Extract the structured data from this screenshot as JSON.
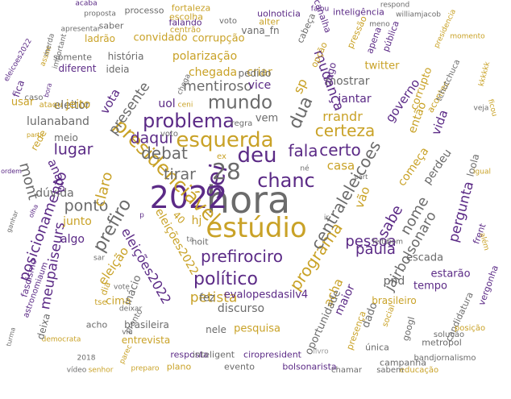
{
  "palette": {
    "purple": "#5b2a86",
    "gold": "#c9a227",
    "gray": "#6b6b6b",
    "lightgray": "#9a9a9a"
  },
  "words": [
    {
      "text": "hora",
      "color": "gray"
    },
    {
      "text": "2022",
      "color": "purple"
    },
    {
      "text": "estúdio",
      "color": "gold"
    },
    {
      "text": "sei",
      "color": "purple"
    },
    {
      "text": "28",
      "color": "gray"
    },
    {
      "text": "esquerda",
      "color": "gold"
    },
    {
      "text": "deu",
      "color": "purple"
    },
    {
      "text": "chanc",
      "color": "purple"
    },
    {
      "text": "problema",
      "color": "purple"
    },
    {
      "text": "mundo",
      "color": "gray"
    },
    {
      "text": "presidenciável",
      "color": "gold"
    },
    {
      "text": "prefirociro",
      "color": "purple"
    },
    {
      "text": "político",
      "color": "purple"
    },
    {
      "text": "fala",
      "color": "purple"
    },
    {
      "text": "certo",
      "color": "purple"
    },
    {
      "text": "certeza",
      "color": "gold"
    },
    {
      "text": "programa",
      "color": "gold"
    },
    {
      "text": "centraleleicoes",
      "color": "gray"
    },
    {
      "text": "dua",
      "color": "gray"
    },
    {
      "text": "debat",
      "color": "gray"
    },
    {
      "text": "tirar",
      "color": "gray"
    },
    {
      "text": "prefiro",
      "color": "gray"
    },
    {
      "text": "daqui",
      "color": "purple"
    },
    {
      "text": "lugar",
      "color": "purple"
    },
    {
      "text": "ponto",
      "color": "gray"
    },
    {
      "text": "pessoa",
      "color": "purple"
    },
    {
      "text": "paula",
      "color": "purple"
    },
    {
      "text": "nome",
      "color": "gray"
    },
    {
      "text": "sabe",
      "color": "purple"
    },
    {
      "text": "jairbolsonaro",
      "color": "gray"
    },
    {
      "text": "petista",
      "color": "gold"
    },
    {
      "text": "mentiroso",
      "color": "gray"
    },
    {
      "text": "rrandr",
      "color": "gold"
    },
    {
      "text": "mudança",
      "color": "purple"
    },
    {
      "text": "meupaiseurs",
      "color": "purple"
    },
    {
      "text": "eleições2022",
      "color": "purple"
    },
    {
      "text": "presente",
      "color": "gray"
    },
    {
      "text": "claro",
      "color": "gold"
    },
    {
      "text": "posicionamento",
      "color": "purple"
    },
    {
      "text": "mont",
      "color": "gray"
    },
    {
      "text": "sp",
      "color": "gold"
    },
    {
      "text": "casa",
      "color": "gold"
    },
    {
      "text": "vão",
      "color": "gold"
    },
    {
      "text": "perdeu",
      "color": "gray"
    },
    {
      "text": "pergunta",
      "color": "purple"
    },
    {
      "text": "começa",
      "color": "gold"
    },
    {
      "text": "vida",
      "color": "purple"
    },
    {
      "text": "governo",
      "color": "purple"
    },
    {
      "text": "então",
      "color": "gold"
    },
    {
      "text": "acha",
      "color": "gold"
    },
    {
      "text": "maior",
      "color": "purple"
    },
    {
      "text": "pnd",
      "color": "gray"
    },
    {
      "text": "dado",
      "color": "gray"
    },
    {
      "text": "oportunidade",
      "color": "gray"
    },
    {
      "text": "discurso",
      "color": "gray"
    },
    {
      "text": "pesquisa",
      "color": "gold"
    },
    {
      "text": "fez",
      "color": "gray"
    },
    {
      "text": "evalopesdasilv4",
      "color": "purple"
    },
    {
      "text": "cima",
      "color": "gold"
    },
    {
      "text": "brasileira",
      "color": "gray"
    },
    {
      "text": "entrevista",
      "color": "gold"
    },
    {
      "text": "resposta",
      "color": "purple"
    },
    {
      "text": "inteligent",
      "color": "gray"
    },
    {
      "text": "ciropresident",
      "color": "purple"
    },
    {
      "text": "bolsonarista",
      "color": "purple"
    },
    {
      "text": "evento",
      "color": "gray"
    },
    {
      "text": "plano",
      "color": "gold"
    },
    {
      "text": "nele",
      "color": "gray"
    },
    {
      "text": "eleição",
      "color": "gold"
    },
    {
      "text": "inácio",
      "color": "gray"
    },
    {
      "text": "eleições2022",
      "color": "gold"
    },
    {
      "text": "algo",
      "color": "purple"
    },
    {
      "text": "junto",
      "color": "gold"
    },
    {
      "text": "dúvida",
      "color": "gray"
    },
    {
      "text": "ana",
      "color": "purple"
    },
    {
      "text": "pq",
      "color": "purple"
    },
    {
      "text": "hj",
      "color": "gold"
    },
    {
      "text": "40",
      "color": "gold"
    },
    {
      "text": "lulanaband",
      "color": "gray"
    },
    {
      "text": "eleitor",
      "color": "gray"
    },
    {
      "text": "meio",
      "color": "gray"
    },
    {
      "text": "rede",
      "color": "gold"
    },
    {
      "text": "jeito",
      "color": "gold"
    },
    {
      "text": "vota",
      "color": "purple"
    },
    {
      "text": "uol",
      "color": "purple"
    },
    {
      "text": "vem",
      "color": "gray"
    },
    {
      "text": "vice",
      "color": "purple"
    },
    {
      "text": "chegada",
      "color": "gold"
    },
    {
      "text": "polarização",
      "color": "gold"
    },
    {
      "text": "criar",
      "color": "gold"
    },
    {
      "text": "mostrar",
      "color": "gray"
    },
    {
      "text": "jantar",
      "color": "purple"
    },
    {
      "text": "twitter",
      "color": "gold"
    },
    {
      "text": "pedido",
      "color": "gray"
    },
    {
      "text": "história",
      "color": "gray"
    },
    {
      "text": "diferent",
      "color": "purple"
    },
    {
      "text": "ideia",
      "color": "gray"
    },
    {
      "text": "somente",
      "color": "gray"
    },
    {
      "text": "convidado",
      "color": "gold"
    },
    {
      "text": "corrupção",
      "color": "gold"
    },
    {
      "text": "vana_fn",
      "color": "gray"
    },
    {
      "text": "uolnoticia",
      "color": "purple"
    },
    {
      "text": "processo",
      "color": "gray"
    },
    {
      "text": "saber",
      "color": "gray"
    },
    {
      "text": "ladrão",
      "color": "gold"
    },
    {
      "text": "falando",
      "color": "purple"
    },
    {
      "text": "centrão",
      "color": "gold"
    },
    {
      "text": "escolha",
      "color": "gold"
    },
    {
      "text": "fortaleza",
      "color": "gold"
    },
    {
      "text": "alter",
      "color": "gold"
    },
    {
      "text": "voto",
      "color": "gray"
    },
    {
      "text": "inteligência",
      "color": "purple"
    },
    {
      "text": "canalha",
      "color": "purple"
    },
    {
      "text": "cabeça",
      "color": "gray"
    },
    {
      "text": "pressão",
      "color": "gold"
    },
    {
      "text": "apena",
      "color": "purple"
    },
    {
      "text": "pública",
      "color": "purple"
    },
    {
      "text": "opção",
      "color": "gold"
    },
    {
      "text": "logo",
      "color": "purple"
    },
    {
      "text": "corrupto",
      "color": "gold"
    },
    {
      "text": "acontec",
      "color": "gold"
    },
    {
      "text": "tchutchuca",
      "color": "gray"
    },
    {
      "text": "loola",
      "color": "gray"
    },
    {
      "text": "frent",
      "color": "purple"
    },
    {
      "text": "vergonha",
      "color": "purple"
    },
    {
      "text": "escada",
      "color": "gray"
    },
    {
      "text": "estarão",
      "color": "purple"
    },
    {
      "text": "tempo",
      "color": "purple"
    },
    {
      "text": "brasileiro",
      "color": "gold"
    },
    {
      "text": "candidatura",
      "color": "gray"
    },
    {
      "text": "metropol",
      "color": "gray"
    },
    {
      "text": "única",
      "color": "gray"
    },
    {
      "text": "campanha",
      "color": "gray"
    },
    {
      "text": "bandjornalismo",
      "color": "gray"
    },
    {
      "text": "educação",
      "color": "gold"
    },
    {
      "text": "sabem",
      "color": "gray"
    },
    {
      "text": "chamar",
      "color": "gray"
    },
    {
      "text": "livro",
      "color": "lightgray"
    },
    {
      "text": "presença",
      "color": "gold"
    },
    {
      "text": "social",
      "color": "gold"
    },
    {
      "text": "googl",
      "color": "gray"
    },
    {
      "text": "solução",
      "color": "gray"
    },
    {
      "text": "posição",
      "color": "gold"
    },
    {
      "text": "momento",
      "color": "gold"
    },
    {
      "text": "presidencia",
      "color": "gold"
    },
    {
      "text": "kkkkkk",
      "color": "gold"
    },
    {
      "text": "veja",
      "color": "gray"
    },
    {
      "text": "ficou",
      "color": "gold"
    },
    {
      "text": "igual",
      "color": "gold"
    },
    {
      "text": "além",
      "color": "gold"
    },
    {
      "text": "feito",
      "color": "gray"
    },
    {
      "text": "bom",
      "color": "gray"
    },
    {
      "text": "part",
      "color": "gray"
    },
    {
      "text": "né",
      "color": "gray"
    },
    {
      "text": "regra",
      "color": "gray"
    },
    {
      "text": "ex",
      "color": "gold"
    },
    {
      "text": "voto",
      "color": "gray"
    },
    {
      "text": "ceni",
      "color": "gold"
    },
    {
      "text": "chega",
      "color": "gray"
    },
    {
      "text": "noit",
      "color": "gray"
    },
    {
      "text": "ta",
      "color": "gray"
    },
    {
      "text": "ir",
      "color": "gray"
    },
    {
      "text": "p",
      "color": "purple"
    },
    {
      "text": "dia",
      "color": "gold"
    },
    {
      "text": "sar",
      "color": "gray"
    },
    {
      "text": "vote",
      "color": "gray"
    },
    {
      "text": "tse",
      "color": "gold"
    },
    {
      "text": "deixar",
      "color": "gray"
    },
    {
      "text": "viu",
      "color": "gray"
    },
    {
      "text": "acho",
      "color": "gray"
    },
    {
      "text": "pronto",
      "color": "gray"
    },
    {
      "text": "parec",
      "color": "gold"
    },
    {
      "text": "preparo",
      "color": "gold"
    },
    {
      "text": "senhor",
      "color": "gold"
    },
    {
      "text": "vídeo",
      "color": "gray"
    },
    {
      "text": "2018",
      "color": "gray"
    },
    {
      "text": "democrata",
      "color": "gold"
    },
    {
      "text": "deixa",
      "color": "gray"
    },
    {
      "text": "astronomiaum",
      "color": "purple"
    },
    {
      "text": "fascismo",
      "color": "purple"
    },
    {
      "text": "turma",
      "color": "gray"
    },
    {
      "text": "ganhar",
      "color": "gray"
    },
    {
      "text": "ordem",
      "color": "purple"
    },
    {
      "text": "partir",
      "color": "gold"
    },
    {
      "text": "ataqu",
      "color": "gold"
    },
    {
      "text": "caso",
      "color": "gray"
    },
    {
      "text": "bora",
      "color": "purple"
    },
    {
      "text": "fica",
      "color": "purple"
    },
    {
      "text": "usar",
      "color": "gold"
    },
    {
      "text": "olha",
      "color": "purple"
    },
    {
      "text": "eleicoes2022",
      "color": "purple"
    },
    {
      "text": "assim",
      "color": "gold"
    },
    {
      "text": "important",
      "color": "gray"
    },
    {
      "text": "apresentar",
      "color": "gray"
    },
    {
      "text": "merda",
      "color": "gray"
    },
    {
      "text": "acaba",
      "color": "purple"
    },
    {
      "text": "proposta",
      "color": "gray"
    },
    {
      "text": "falou",
      "color": "purple"
    },
    {
      "text": "respond",
      "color": "gray"
    },
    {
      "text": "meno",
      "color": "gray"
    },
    {
      "text": "williamjacob",
      "color": "gray"
    },
    {
      "text": "difícil",
      "color": "gray"
    },
    {
      "text": "luca",
      "color": "gray"
    }
  ]
}
